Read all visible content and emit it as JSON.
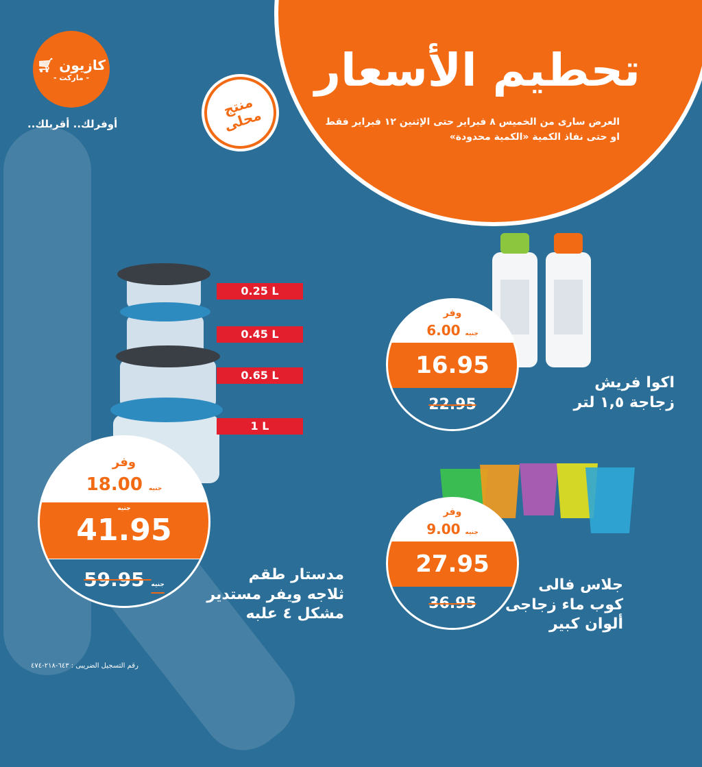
{
  "colors": {
    "background": "#2b6e98",
    "accent": "#f36a14",
    "size_tag": "#e31e2d"
  },
  "header": {
    "title": "تحطيم الأسعار",
    "subtitle_line1": "العرض سارى من الخميس ٨ فبراير حتى الإثنين ١٢ فبراير فقط",
    "subtitle_line2": "او حتى نفاذ الكمية «الكمية محدودة»"
  },
  "logo": {
    "name": "كازيون",
    "sub": "- ماركت -",
    "icon": "cart-icon"
  },
  "slogan": "أوفرلك.. أقربلك..",
  "local_badge": "منتج محلى",
  "currency": "جنيه",
  "save_label": "وفر",
  "products": [
    {
      "name_line1": "مدستار طقم",
      "name_line2": "ثلاجه ويفر مستدير",
      "name_line3": "مشكل ٤ علبه",
      "save": "18.00",
      "price": "41.95",
      "old_price": "59.95",
      "sizes": [
        "0.25 L",
        "0.45 L",
        "0.65 L",
        "1 L"
      ]
    },
    {
      "name_line1": "اكوا فريش",
      "name_line2": "زجاجة ١,٥ لتر",
      "save": "6.00",
      "price": "16.95",
      "old_price": "22.95"
    },
    {
      "name_line1": "جلاس فالى",
      "name_line2": "كوب ماء زجاجى",
      "name_line3": "ألوان كبير",
      "save": "9.00",
      "price": "27.95",
      "old_price": "36.95"
    }
  ],
  "tax_number": "رقم التسجيل الضريبى : ٦٤٣-٢١٨-٤٧٤"
}
